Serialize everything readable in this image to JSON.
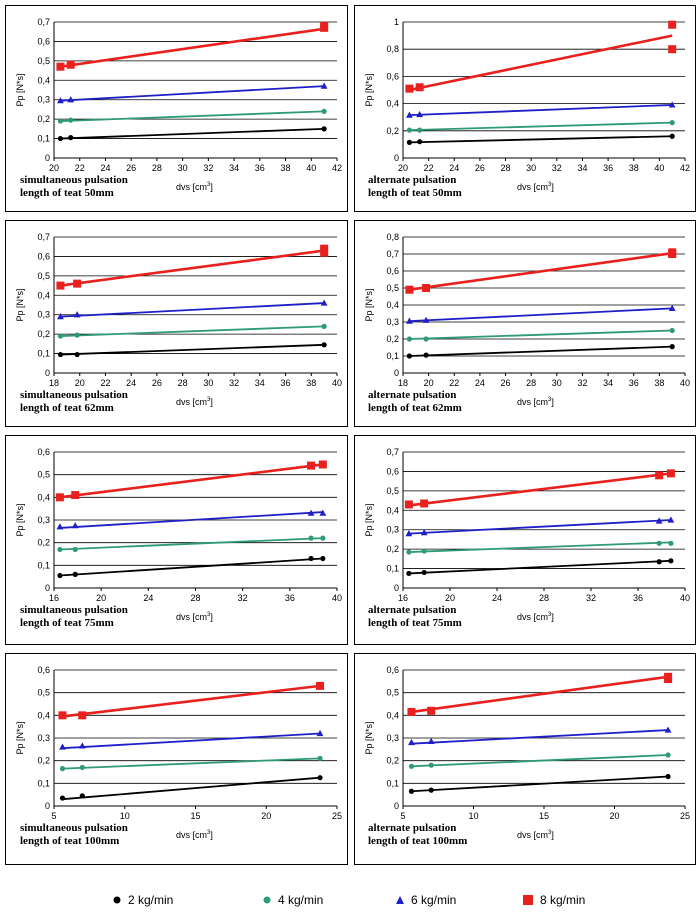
{
  "legend": [
    {
      "label": "2 kg/min",
      "color": "#000000",
      "marker": "circle"
    },
    {
      "label": "4 kg/min",
      "color": "#2E9A78",
      "marker": "circle"
    },
    {
      "label": "6 kg/min",
      "color": "#1F1FC8",
      "marker": "triangle"
    },
    {
      "label": "8 kg/min",
      "color": "#E8201E",
      "marker": "square"
    }
  ],
  "chart_data": [
    {
      "type": "scatter",
      "note_line1": "simultaneous pulsation",
      "note_line2": "length of teat 50mm",
      "xlabel": "dvs [cm",
      "xlabel_sup": "3",
      "xlabel_end": "]",
      "ylabel": "Pp [N*s]",
      "xlim": [
        20,
        42
      ],
      "xticks": [
        "20",
        "22",
        "24",
        "26",
        "28",
        "30",
        "32",
        "34",
        "36",
        "38",
        "40",
        "42"
      ],
      "ylim": [
        0,
        0.7
      ],
      "yticks": [
        "0",
        "0,1",
        "0,2",
        "0,3",
        "0,4",
        "0,5",
        "0,6",
        "0,7"
      ],
      "x": [
        20.5,
        21.3,
        41
      ],
      "series": [
        {
          "values": [
            0.1,
            0.105,
            0.15
          ],
          "trend": [
            [
              20.5,
              0.1
            ],
            [
              41,
              0.15
            ]
          ]
        },
        {
          "values": [
            0.19,
            0.195,
            0.24
          ],
          "trend": [
            [
              20.5,
              0.19
            ],
            [
              41,
              0.24
            ]
          ]
        },
        {
          "values": [
            0.295,
            0.3,
            0.37
          ],
          "trend": [
            [
              20.5,
              0.295
            ],
            [
              41,
              0.37
            ]
          ]
        },
        {
          "x": [
            20.5,
            21.3,
            41,
            41
          ],
          "values": [
            0.47,
            0.48,
            0.67,
            0.68
          ],
          "trend": [
            [
              20.5,
              0.47
            ],
            [
              41,
              0.665
            ]
          ]
        }
      ]
    },
    {
      "type": "scatter",
      "note_line1": "alternate pulsation",
      "note_line2": "length of teat 50mm",
      "xlabel": "dvs [cm",
      "xlabel_sup": "3",
      "xlabel_end": "]",
      "ylabel": "Pp [N*s]",
      "xlim": [
        20,
        42
      ],
      "xticks": [
        "20",
        "22",
        "24",
        "26",
        "28",
        "30",
        "32",
        "34",
        "36",
        "38",
        "40",
        "42"
      ],
      "ylim": [
        0,
        1
      ],
      "yticks": [
        "0",
        "0,2",
        "0,4",
        "0,6",
        "0,8",
        "1"
      ],
      "x": [
        20.5,
        21.3,
        41
      ],
      "series": [
        {
          "values": [
            0.115,
            0.12,
            0.16
          ],
          "trend": [
            [
              20.5,
              0.115
            ],
            [
              41,
              0.16
            ]
          ]
        },
        {
          "values": [
            0.205,
            0.205,
            0.26
          ],
          "trend": [
            [
              20.5,
              0.205
            ],
            [
              41,
              0.26
            ]
          ]
        },
        {
          "values": [
            0.315,
            0.32,
            0.39
          ],
          "trend": [
            [
              20.5,
              0.315
            ],
            [
              41,
              0.39
            ]
          ]
        },
        {
          "x": [
            20.5,
            21.3,
            41,
            41
          ],
          "values": [
            0.51,
            0.52,
            0.98,
            0.8
          ],
          "trend": [
            [
              20.5,
              0.5
            ],
            [
              41,
              0.9
            ]
          ]
        }
      ]
    },
    {
      "type": "scatter",
      "note_line1": "simultaneous pulsation",
      "note_line2": "length of teat 62mm",
      "xlabel": "dvs [cm",
      "xlabel_sup": "3",
      "xlabel_end": "]",
      "ylabel": "Pp [N*s]",
      "xlim": [
        18,
        40
      ],
      "xticks": [
        "18",
        "20",
        "22",
        "24",
        "26",
        "28",
        "30",
        "32",
        "34",
        "36",
        "38",
        "40"
      ],
      "ylim": [
        0,
        0.7
      ],
      "yticks": [
        "0",
        "0,1",
        "0,2",
        "0,3",
        "0,4",
        "0,5",
        "0,6",
        "0,7"
      ],
      "x": [
        18.5,
        19.8,
        39
      ],
      "series": [
        {
          "values": [
            0.095,
            0.095,
            0.145
          ],
          "trend": [
            [
              18.5,
              0.095
            ],
            [
              39,
              0.145
            ]
          ]
        },
        {
          "values": [
            0.19,
            0.195,
            0.24
          ],
          "trend": [
            [
              18.5,
              0.19
            ],
            [
              39,
              0.24
            ]
          ]
        },
        {
          "values": [
            0.29,
            0.3,
            0.36
          ],
          "trend": [
            [
              18.5,
              0.29
            ],
            [
              39,
              0.36
            ]
          ]
        },
        {
          "x": [
            18.5,
            19.8,
            39,
            39
          ],
          "values": [
            0.45,
            0.46,
            0.62,
            0.64
          ],
          "trend": [
            [
              18.5,
              0.45
            ],
            [
              39,
              0.63
            ]
          ]
        }
      ]
    },
    {
      "type": "scatter",
      "note_line1": "alternate pulsation",
      "note_line2": "length of teat 62mm",
      "xlabel": "dvs [cm",
      "xlabel_sup": "3",
      "xlabel_end": "]",
      "ylabel": "Pp [N*s]",
      "xlim": [
        18,
        40
      ],
      "xticks": [
        "18",
        "20",
        "22",
        "24",
        "26",
        "28",
        "30",
        "32",
        "34",
        "36",
        "38",
        "40"
      ],
      "ylim": [
        0,
        0.8
      ],
      "yticks": [
        "0",
        "0,1",
        "0,2",
        "0,3",
        "0,4",
        "0,5",
        "0,6",
        "0,7",
        "0,8"
      ],
      "x": [
        18.5,
        19.8,
        39
      ],
      "series": [
        {
          "values": [
            0.1,
            0.105,
            0.155
          ],
          "trend": [
            [
              18.5,
              0.1
            ],
            [
              39,
              0.155
            ]
          ]
        },
        {
          "values": [
            0.2,
            0.2,
            0.25
          ],
          "trend": [
            [
              18.5,
              0.2
            ],
            [
              39,
              0.25
            ]
          ]
        },
        {
          "values": [
            0.305,
            0.31,
            0.38
          ],
          "trend": [
            [
              18.5,
              0.305
            ],
            [
              39,
              0.38
            ]
          ]
        },
        {
          "x": [
            18.5,
            19.8,
            39,
            39
          ],
          "values": [
            0.49,
            0.5,
            0.7,
            0.71
          ],
          "trend": [
            [
              18.5,
              0.49
            ],
            [
              39,
              0.705
            ]
          ]
        }
      ]
    },
    {
      "type": "scatter",
      "note_line1": "simultaneous pulsation",
      "note_line2": "length of teat 75mm",
      "xlabel": "dvs [cm",
      "xlabel_sup": "3",
      "xlabel_end": "]",
      "ylabel": "Pp [N*s]",
      "xlim": [
        16,
        40
      ],
      "xticks": [
        "16",
        "20",
        "24",
        "28",
        "32",
        "36",
        "40"
      ],
      "ylim": [
        0,
        0.6
      ],
      "yticks": [
        "0",
        "0,1",
        "0,2",
        "0,3",
        "0,4",
        "0,5",
        "0,6"
      ],
      "x": [
        16.5,
        17.8,
        37.8,
        38.8
      ],
      "series": [
        {
          "values": [
            0.055,
            0.06,
            0.13,
            0.13
          ],
          "trend": [
            [
              16.5,
              0.055
            ],
            [
              38.8,
              0.13
            ]
          ]
        },
        {
          "values": [
            0.17,
            0.17,
            0.22,
            0.22
          ],
          "trend": [
            [
              16.5,
              0.17
            ],
            [
              38.8,
              0.22
            ]
          ]
        },
        {
          "values": [
            0.27,
            0.275,
            0.33,
            0.33
          ],
          "trend": [
            [
              16.5,
              0.265
            ],
            [
              38.8,
              0.335
            ]
          ]
        },
        {
          "values": [
            0.4,
            0.41,
            0.54,
            0.545
          ],
          "trend": [
            [
              16.5,
              0.4
            ],
            [
              38.8,
              0.545
            ]
          ]
        }
      ]
    },
    {
      "type": "scatter",
      "note_line1": "alternate pulsation",
      "note_line2": "length of teat 75mm",
      "xlabel": "dvs [cm",
      "xlabel_sup": "3",
      "xlabel_end": "]",
      "ylabel": "Pp [N*s]",
      "xlim": [
        16,
        40
      ],
      "xticks": [
        "16",
        "20",
        "24",
        "28",
        "32",
        "36",
        "40"
      ],
      "ylim": [
        0,
        0.7
      ],
      "yticks": [
        "0",
        "0,1",
        "0,2",
        "0,3",
        "0,4",
        "0,5",
        "0,6",
        "0,7"
      ],
      "x": [
        16.5,
        17.8,
        37.8,
        38.8
      ],
      "series": [
        {
          "values": [
            0.075,
            0.08,
            0.135,
            0.14
          ],
          "trend": [
            [
              16.5,
              0.075
            ],
            [
              38.8,
              0.14
            ]
          ]
        },
        {
          "values": [
            0.185,
            0.19,
            0.23,
            0.23
          ],
          "trend": [
            [
              16.5,
              0.185
            ],
            [
              38.8,
              0.235
            ]
          ]
        },
        {
          "values": [
            0.28,
            0.285,
            0.345,
            0.35
          ],
          "trend": [
            [
              16.5,
              0.28
            ],
            [
              38.8,
              0.35
            ]
          ]
        },
        {
          "values": [
            0.43,
            0.435,
            0.58,
            0.59
          ],
          "trend": [
            [
              16.5,
              0.425
            ],
            [
              38.8,
              0.59
            ]
          ]
        }
      ]
    },
    {
      "type": "scatter",
      "note_line1": "simultaneous pulsation",
      "note_line2": "length of teat 100mm",
      "xlabel": "dvs [cm",
      "xlabel_sup": "3",
      "xlabel_end": "]",
      "ylabel": "Pp [N*s]",
      "xlim": [
        5,
        25
      ],
      "xticks": [
        "5",
        "10",
        "15",
        "20",
        "25"
      ],
      "ylim": [
        0,
        0.6
      ],
      "yticks": [
        "0",
        "0,1",
        "0,2",
        "0,3",
        "0,4",
        "0,5",
        "0,6"
      ],
      "x": [
        5.6,
        7,
        23.8
      ],
      "series": [
        {
          "values": [
            0.035,
            0.045,
            0.125
          ],
          "trend": [
            [
              5.6,
              0.03
            ],
            [
              23.8,
              0.125
            ]
          ]
        },
        {
          "values": [
            0.165,
            0.17,
            0.21
          ],
          "trend": [
            [
              5.6,
              0.165
            ],
            [
              23.8,
              0.21
            ]
          ]
        },
        {
          "values": [
            0.26,
            0.265,
            0.32
          ],
          "trend": [
            [
              5.6,
              0.255
            ],
            [
              23.8,
              0.32
            ]
          ]
        },
        {
          "values": [
            0.4,
            0.4,
            0.53
          ],
          "trend": [
            [
              5.6,
              0.395
            ],
            [
              23.8,
              0.53
            ]
          ]
        }
      ]
    },
    {
      "type": "scatter",
      "note_line1": "alternate pulsation",
      "note_line2": "length of teat 100mm",
      "xlabel": "dvs [cm",
      "xlabel_sup": "3",
      "xlabel_end": "]",
      "ylabel": "Pp [N*s]",
      "xlim": [
        5,
        25
      ],
      "xticks": [
        "5",
        "10",
        "15",
        "20",
        "25"
      ],
      "ylim": [
        0,
        0.6
      ],
      "yticks": [
        "0",
        "0,1",
        "0,2",
        "0,3",
        "0,4",
        "0,5",
        "0,6"
      ],
      "x": [
        5.6,
        7,
        23.8
      ],
      "series": [
        {
          "values": [
            0.065,
            0.07,
            0.13
          ],
          "trend": [
            [
              5.6,
              0.065
            ],
            [
              23.8,
              0.13
            ]
          ]
        },
        {
          "values": [
            0.175,
            0.18,
            0.225
          ],
          "trend": [
            [
              5.6,
              0.175
            ],
            [
              23.8,
              0.225
            ]
          ]
        },
        {
          "values": [
            0.28,
            0.285,
            0.335
          ],
          "trend": [
            [
              5.6,
              0.275
            ],
            [
              23.8,
              0.335
            ]
          ]
        },
        {
          "x": [
            5.6,
            7,
            23.8,
            23.8
          ],
          "values": [
            0.415,
            0.42,
            0.57,
            0.56
          ],
          "trend": [
            [
              5.6,
              0.415
            ],
            [
              23.8,
              0.57
            ]
          ]
        }
      ]
    }
  ]
}
